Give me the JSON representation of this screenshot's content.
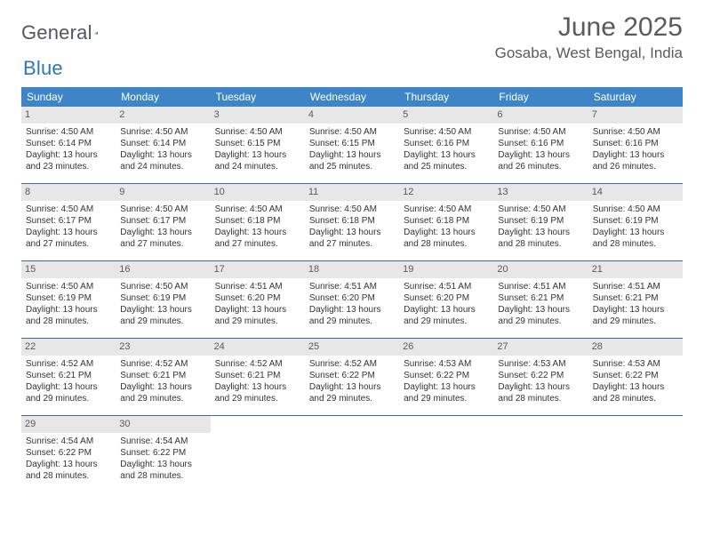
{
  "logo": {
    "general": "General",
    "blue": "Blue"
  },
  "title": "June 2025",
  "location": "Gosaba, West Bengal, India",
  "colors": {
    "header_bg": "#3d85c6",
    "header_text": "#ffffff",
    "daynum_bg": "#e7e7e7",
    "divider": "#3d6a99",
    "body_text": "#333333",
    "title_text": "#5a5a5a"
  },
  "dayNames": [
    "Sunday",
    "Monday",
    "Tuesday",
    "Wednesday",
    "Thursday",
    "Friday",
    "Saturday"
  ],
  "weeks": [
    [
      {
        "n": "1",
        "sr": "4:50 AM",
        "ss": "6:14 PM",
        "dl": "13 hours and 23 minutes."
      },
      {
        "n": "2",
        "sr": "4:50 AM",
        "ss": "6:14 PM",
        "dl": "13 hours and 24 minutes."
      },
      {
        "n": "3",
        "sr": "4:50 AM",
        "ss": "6:15 PM",
        "dl": "13 hours and 24 minutes."
      },
      {
        "n": "4",
        "sr": "4:50 AM",
        "ss": "6:15 PM",
        "dl": "13 hours and 25 minutes."
      },
      {
        "n": "5",
        "sr": "4:50 AM",
        "ss": "6:16 PM",
        "dl": "13 hours and 25 minutes."
      },
      {
        "n": "6",
        "sr": "4:50 AM",
        "ss": "6:16 PM",
        "dl": "13 hours and 26 minutes."
      },
      {
        "n": "7",
        "sr": "4:50 AM",
        "ss": "6:16 PM",
        "dl": "13 hours and 26 minutes."
      }
    ],
    [
      {
        "n": "8",
        "sr": "4:50 AM",
        "ss": "6:17 PM",
        "dl": "13 hours and 27 minutes."
      },
      {
        "n": "9",
        "sr": "4:50 AM",
        "ss": "6:17 PM",
        "dl": "13 hours and 27 minutes."
      },
      {
        "n": "10",
        "sr": "4:50 AM",
        "ss": "6:18 PM",
        "dl": "13 hours and 27 minutes."
      },
      {
        "n": "11",
        "sr": "4:50 AM",
        "ss": "6:18 PM",
        "dl": "13 hours and 27 minutes."
      },
      {
        "n": "12",
        "sr": "4:50 AM",
        "ss": "6:18 PM",
        "dl": "13 hours and 28 minutes."
      },
      {
        "n": "13",
        "sr": "4:50 AM",
        "ss": "6:19 PM",
        "dl": "13 hours and 28 minutes."
      },
      {
        "n": "14",
        "sr": "4:50 AM",
        "ss": "6:19 PM",
        "dl": "13 hours and 28 minutes."
      }
    ],
    [
      {
        "n": "15",
        "sr": "4:50 AM",
        "ss": "6:19 PM",
        "dl": "13 hours and 28 minutes."
      },
      {
        "n": "16",
        "sr": "4:50 AM",
        "ss": "6:19 PM",
        "dl": "13 hours and 29 minutes."
      },
      {
        "n": "17",
        "sr": "4:51 AM",
        "ss": "6:20 PM",
        "dl": "13 hours and 29 minutes."
      },
      {
        "n": "18",
        "sr": "4:51 AM",
        "ss": "6:20 PM",
        "dl": "13 hours and 29 minutes."
      },
      {
        "n": "19",
        "sr": "4:51 AM",
        "ss": "6:20 PM",
        "dl": "13 hours and 29 minutes."
      },
      {
        "n": "20",
        "sr": "4:51 AM",
        "ss": "6:21 PM",
        "dl": "13 hours and 29 minutes."
      },
      {
        "n": "21",
        "sr": "4:51 AM",
        "ss": "6:21 PM",
        "dl": "13 hours and 29 minutes."
      }
    ],
    [
      {
        "n": "22",
        "sr": "4:52 AM",
        "ss": "6:21 PM",
        "dl": "13 hours and 29 minutes."
      },
      {
        "n": "23",
        "sr": "4:52 AM",
        "ss": "6:21 PM",
        "dl": "13 hours and 29 minutes."
      },
      {
        "n": "24",
        "sr": "4:52 AM",
        "ss": "6:21 PM",
        "dl": "13 hours and 29 minutes."
      },
      {
        "n": "25",
        "sr": "4:52 AM",
        "ss": "6:22 PM",
        "dl": "13 hours and 29 minutes."
      },
      {
        "n": "26",
        "sr": "4:53 AM",
        "ss": "6:22 PM",
        "dl": "13 hours and 29 minutes."
      },
      {
        "n": "27",
        "sr": "4:53 AM",
        "ss": "6:22 PM",
        "dl": "13 hours and 28 minutes."
      },
      {
        "n": "28",
        "sr": "4:53 AM",
        "ss": "6:22 PM",
        "dl": "13 hours and 28 minutes."
      }
    ],
    [
      {
        "n": "29",
        "sr": "4:54 AM",
        "ss": "6:22 PM",
        "dl": "13 hours and 28 minutes."
      },
      {
        "n": "30",
        "sr": "4:54 AM",
        "ss": "6:22 PM",
        "dl": "13 hours and 28 minutes."
      },
      {
        "empty": true
      },
      {
        "empty": true
      },
      {
        "empty": true
      },
      {
        "empty": true
      },
      {
        "empty": true
      }
    ]
  ],
  "labels": {
    "sunrise": "Sunrise: ",
    "sunset": "Sunset: ",
    "daylight": "Daylight: "
  }
}
